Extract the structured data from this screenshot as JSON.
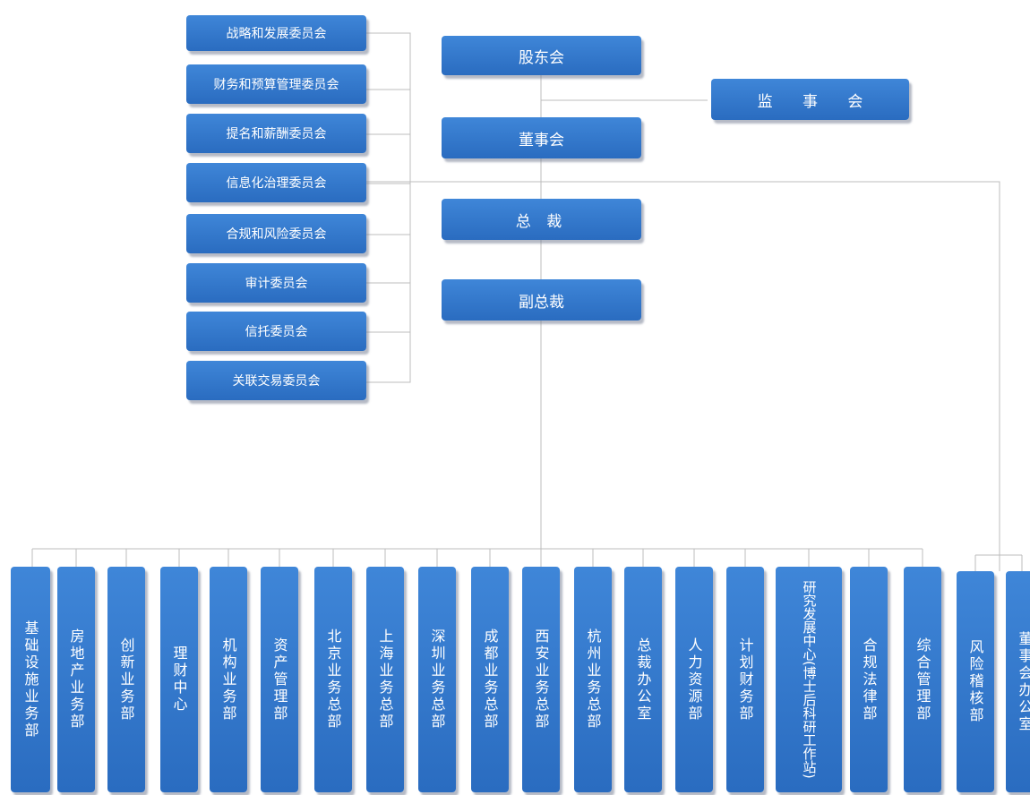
{
  "top": {
    "shareholders": "股东会",
    "supervisors": "监 事 会",
    "board": "董事会",
    "president": "总 裁",
    "vp": "副总裁"
  },
  "committees": [
    "战略和发展委员会",
    "财务和预算管理委员会",
    "提名和薪酬委员会",
    "信息化治理委员会",
    "合规和风险委员会",
    "审计委员会",
    "信托委员会",
    "关联交易委员会"
  ],
  "departments": [
    "基础设施业务部",
    "房地产业务部",
    "创新业务部",
    "理财中心",
    "机构业务部",
    "资产管理部",
    "北京业务总部",
    "上海业务总部",
    "深圳业务总部",
    "成都业务总部",
    "西安业务总部",
    "杭州业务总部",
    "总裁办公室",
    "人力资源部",
    "计划财务部",
    "研究发展中心(博士后科研工作站)",
    "合规法律部",
    "综合管理部"
  ],
  "board_departments": [
    "风险稽核部",
    "董事会办公室"
  ]
}
